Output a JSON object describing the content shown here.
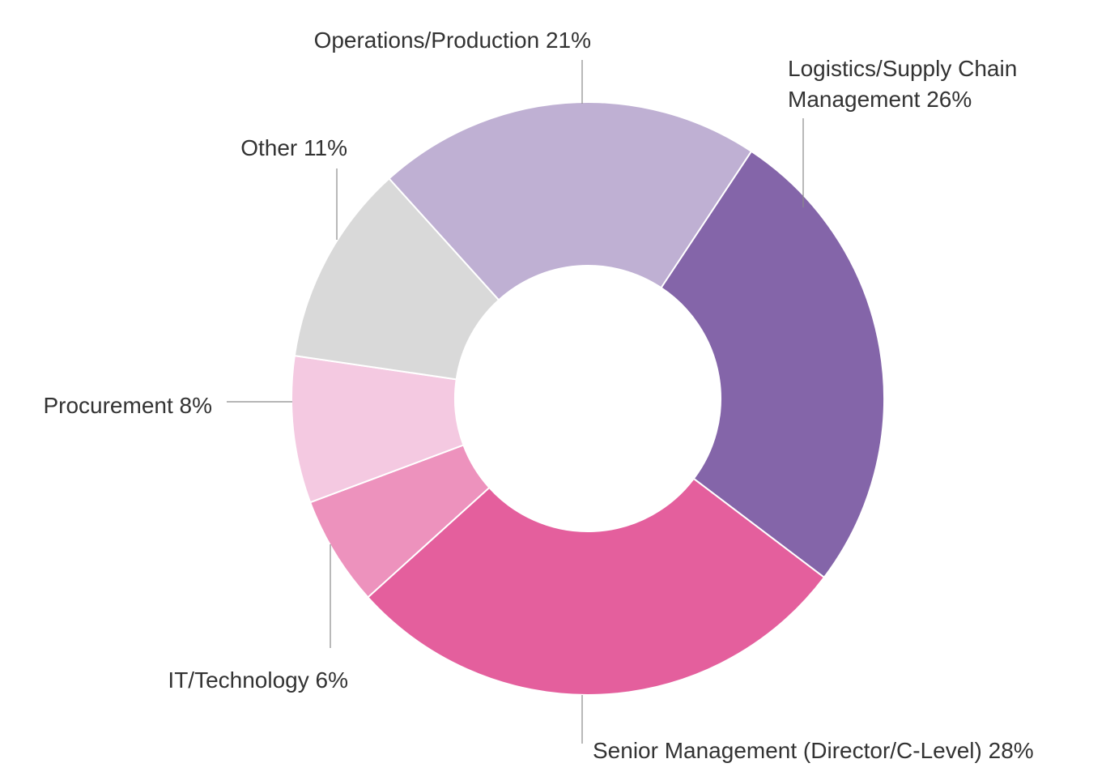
{
  "chart_data": {
    "type": "pie",
    "donut": true,
    "legend": "none",
    "slices": [
      {
        "label_lines": [
          "Logistics/Supply Chain",
          "Management 26%"
        ],
        "value": 26,
        "color": "#8465A9"
      },
      {
        "label_lines": [
          "Senior Management (Director/C-Level) 28%"
        ],
        "value": 28,
        "color": "#E45F9D"
      },
      {
        "label_lines": [
          "IT/Technology 6%"
        ],
        "value": 6,
        "color": "#ED92BD"
      },
      {
        "label_lines": [
          "Procurement 8%"
        ],
        "value": 8,
        "color": "#F4C9E1"
      },
      {
        "label_lines": [
          "Other 11%"
        ],
        "value": 11,
        "color": "#D9D9D9"
      },
      {
        "label_lines": [
          "Operations/Production 21%"
        ],
        "value": 21,
        "color": "#BFB0D3"
      }
    ]
  }
}
